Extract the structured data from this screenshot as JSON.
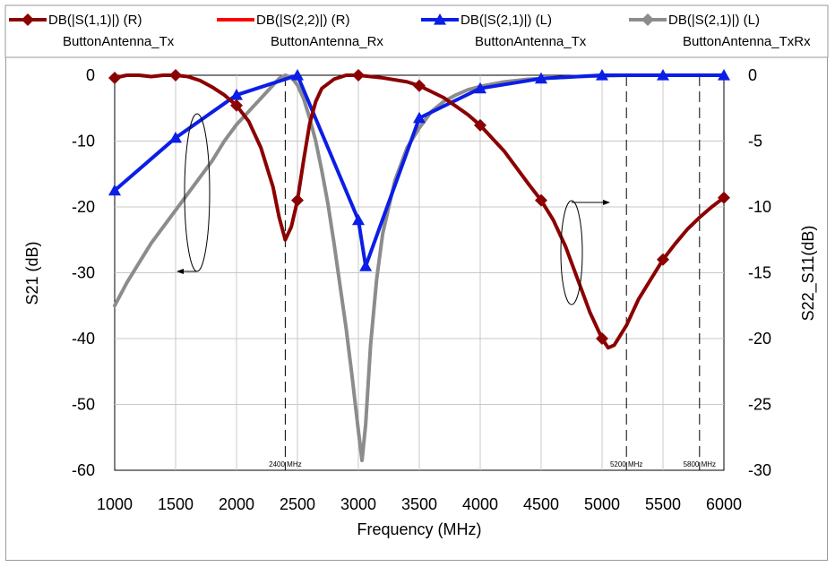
{
  "chart_data": {
    "type": "line",
    "xlabel": "Frequency (MHz)",
    "ylabel_left": "S21 (dB)",
    "ylabel_right": "S22_S11(dB)",
    "xlim": [
      1000,
      6000
    ],
    "ylim_left": [
      -60,
      0
    ],
    "ylim_right": [
      -30,
      0
    ],
    "x_ticks": [
      1000,
      1500,
      2000,
      2500,
      3000,
      3500,
      4000,
      4500,
      5000,
      5500,
      6000
    ],
    "y_ticks_left": [
      0,
      -10,
      -20,
      -30,
      -40,
      -50,
      -60
    ],
    "y_ticks_right": [
      0,
      -5,
      -10,
      -15,
      -20,
      -25,
      -30
    ],
    "grid": true,
    "markers": [
      {
        "x": 2400,
        "label": "2400 MHz"
      },
      {
        "x": 5200,
        "label": "5200 MHz"
      },
      {
        "x": 5800,
        "label": "5800 MHz"
      }
    ],
    "legend": [
      {
        "expr": "DB(|S(1,1)|) (R)",
        "name": "ButtonAntenna_Tx",
        "color": "#8b0000",
        "marker": "diamond"
      },
      {
        "expr": "DB(|S(2,2)|) (R)",
        "name": "ButtonAntenna_Rx",
        "color": "#ff0000",
        "marker": "none"
      },
      {
        "expr": "DB(|S(2,1)|) (L)",
        "name": "ButtonAntenna_Tx",
        "color": "#0a1ee6",
        "marker": "triangle"
      },
      {
        "expr": "DB(|S(2,1)|) (L)",
        "name": "ButtonAntenna_TxRx",
        "color": "#8c8c8c",
        "marker": "diamond"
      }
    ],
    "series": [
      {
        "name": "ButtonAntenna_TxRx",
        "axis": "left",
        "color": "#8c8c8c",
        "marker_every": 0,
        "x": [
          1000,
          1100,
          1200,
          1300,
          1400,
          1500,
          1600,
          1700,
          1800,
          1900,
          2000,
          2100,
          2200,
          2300,
          2350,
          2400,
          2450,
          2500,
          2550,
          2600,
          2650,
          2700,
          2750,
          2800,
          2850,
          2900,
          2950,
          3000,
          3030,
          3060,
          3100,
          3150,
          3200,
          3300,
          3400,
          3500,
          3600,
          3700,
          3800,
          3900,
          4000,
          4200,
          4400,
          4600,
          4800,
          5000,
          5200,
          5400,
          5600,
          5800,
          6000
        ],
        "values": [
          -35,
          -31.5,
          -28.5,
          -25.5,
          -23,
          -20.5,
          -18,
          -15.5,
          -13,
          -10,
          -7.5,
          -5.5,
          -3.5,
          -1.5,
          -0.5,
          0,
          -0.3,
          -1.5,
          -3.5,
          -6.5,
          -10,
          -14.5,
          -19.5,
          -25.5,
          -32,
          -38.5,
          -46,
          -54,
          -58.5,
          -53,
          -41,
          -31,
          -24,
          -16,
          -11,
          -8,
          -5.5,
          -4,
          -3,
          -2.2,
          -1.7,
          -1,
          -0.6,
          -0.4,
          -0.2,
          -0.1,
          0,
          0,
          0,
          0,
          0
        ]
      },
      {
        "name": "ButtonAntenna_Tx (S21)",
        "axis": "left",
        "color": "#0a1ee6",
        "marker_every": 1,
        "marker": "triangle",
        "x": [
          1000,
          1500,
          2000,
          2500,
          3000,
          3060,
          3500,
          4000,
          4500,
          5000,
          5500,
          6000
        ],
        "values": [
          -17.5,
          -9.5,
          -3,
          0,
          -22,
          -29,
          -6.5,
          -2,
          -0.5,
          0,
          0,
          0
        ]
      },
      {
        "name": "ButtonAntenna_Tx (S11)",
        "axis": "right",
        "color": "#8b0000",
        "marker_every": 1,
        "marker": "diamond",
        "x": [
          1000,
          1100,
          1200,
          1300,
          1400,
          1500,
          1600,
          1700,
          1800,
          1900,
          2000,
          2100,
          2200,
          2300,
          2350,
          2400,
          2450,
          2500,
          2550,
          2600,
          2650,
          2700,
          2800,
          2900,
          3000,
          3200,
          3400,
          3500,
          3700,
          3900,
          4000,
          4200,
          4400,
          4500,
          4600,
          4700,
          4800,
          4900,
          5000,
          5050,
          5100,
          5200,
          5300,
          5400,
          5500,
          5600,
          5700,
          5800,
          5900,
          6000
        ],
        "values": [
          -0.2,
          0,
          0,
          -0.1,
          0,
          0,
          -0.1,
          -0.4,
          -0.9,
          -1.5,
          -2.3,
          -3.5,
          -5.5,
          -8.5,
          -10.8,
          -12.5,
          -11.5,
          -9.5,
          -6.5,
          -3.7,
          -2,
          -1,
          -0.3,
          0,
          0,
          -0.2,
          -0.5,
          -0.8,
          -1.7,
          -3,
          -3.8,
          -5.8,
          -8.3,
          -9.5,
          -11,
          -13,
          -15.5,
          -18,
          -20,
          -20.7,
          -20.5,
          -19,
          -17,
          -15.5,
          -14,
          -12.8,
          -11.7,
          -10.8,
          -10,
          -9.3
        ],
        "marker_x": [
          1000,
          1500,
          2000,
          2500,
          3000,
          3500,
          4000,
          4500,
          5000,
          5500,
          6000
        ]
      }
    ]
  }
}
